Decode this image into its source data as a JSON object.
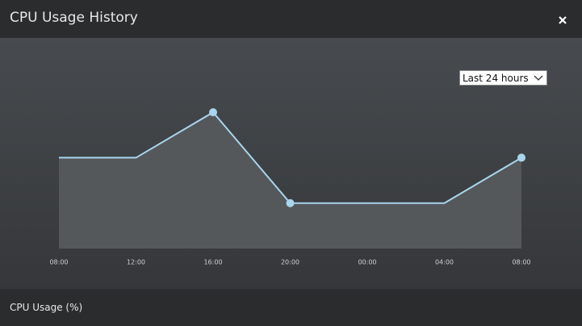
{
  "chart_data": {
    "type": "area",
    "title": "CPU Usage History",
    "ylabel": "CPU Usage (%)",
    "range_select": "Last 24 hours",
    "categories": [
      "08:00",
      "12:00",
      "16:00",
      "20:00",
      "00:00",
      "04:00",
      "08:00"
    ],
    "series": [
      {
        "color": "#a9d6ee",
        "values": [
          40,
          40,
          60,
          20,
          20,
          20,
          40
        ]
      }
    ],
    "area_color": "#55585b",
    "ylim": [
      0,
      70
    ]
  }
}
